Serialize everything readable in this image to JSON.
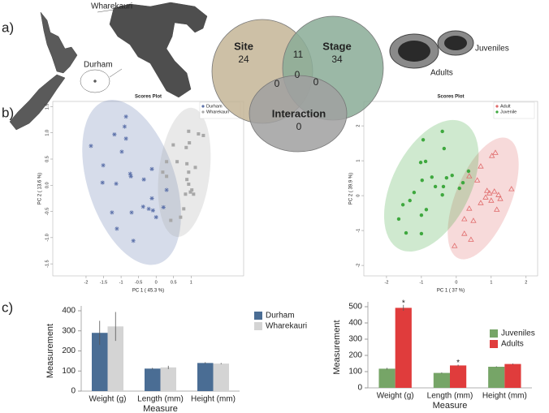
{
  "panel_labels": [
    "a)",
    "b)",
    "c)"
  ],
  "map": {
    "labels": [
      "Wharekauri",
      "Durham"
    ]
  },
  "shells": {
    "labels": [
      "Juveniles",
      "Adults"
    ]
  },
  "chart_data": [
    {
      "type": "venn",
      "sets": [
        {
          "name": "Site",
          "value": 24,
          "color": "#c4b596"
        },
        {
          "name": "Stage",
          "value": 34,
          "color": "#8aab96"
        },
        {
          "name": "Interaction",
          "value": 0,
          "color": "#a0a0a0"
        }
      ],
      "site_stage": 11,
      "site_interaction": 0,
      "stage_interaction": 0,
      "all": 0
    },
    {
      "type": "scatter",
      "title": "Scores Plot",
      "xlabel": "PC 1 ( 45.3 %)",
      "ylabel": "PC 2 ( 13.6 %)",
      "xlim": [
        -2.95,
        2.5
      ],
      "ylim": [
        -1.73,
        1.6
      ],
      "xticks": [
        -2,
        -1.5,
        -1,
        -0.5,
        0,
        0.5,
        1
      ],
      "yticks": [
        {
          "value": -1.5,
          "label": "-1.5"
        },
        {
          "value": -1,
          "label": "-1.0"
        },
        {
          "value": -0.5,
          "label": "-0.5"
        },
        {
          "value": 0,
          "label": "0.0"
        },
        {
          "value": 0.5,
          "label": "0.5"
        },
        {
          "value": 1,
          "label": "1.0"
        },
        {
          "value": 1.5,
          "label": "1.5"
        }
      ],
      "legend": "upper right",
      "series": [
        {
          "name": "Durham",
          "color": "#5d72aa",
          "marker": "star",
          "points": [
            [
              -1.86,
              0.75
            ],
            [
              -1.51,
              0.38
            ],
            [
              -1.19,
              0.97
            ],
            [
              -0.86,
              0.89
            ],
            [
              -0.86,
              1.31
            ],
            [
              -0.9,
              1.12
            ],
            [
              -0.98,
              0.64
            ],
            [
              -1.53,
              0.05
            ],
            [
              -1.14,
              0.03
            ],
            [
              -0.74,
              0.22
            ],
            [
              -0.72,
              0.17
            ],
            [
              -0.35,
              0.11
            ],
            [
              -0.37,
              -0.41
            ],
            [
              -0.21,
              -0.45
            ],
            [
              -0.09,
              -0.48
            ],
            [
              -0.12,
              0.31
            ],
            [
              -0.12,
              -0.25
            ],
            [
              -1.26,
              -0.52
            ],
            [
              -0.7,
              -0.52
            ],
            [
              -1.12,
              -0.83
            ],
            [
              -0.65,
              -1.06
            ],
            [
              0.3,
              -0.09
            ],
            [
              0.21,
              -0.42
            ],
            [
              0.0,
              -0.61
            ]
          ]
        },
        {
          "name": "Wharekauri",
          "color": "#a8a8a8",
          "marker": "square",
          "points": [
            [
              1.21,
              0.98
            ],
            [
              0.93,
              1.03
            ],
            [
              0.95,
              0.81
            ],
            [
              0.86,
              0.72
            ],
            [
              0.49,
              0.77
            ],
            [
              0.3,
              0.45
            ],
            [
              0.6,
              0.45
            ],
            [
              0.88,
              0.41
            ],
            [
              0.93,
              0.25
            ],
            [
              0.88,
              0.11
            ],
            [
              0.93,
              0.02
            ],
            [
              0.98,
              -0.13
            ],
            [
              1.12,
              0.34
            ],
            [
              1.07,
              -0.17
            ],
            [
              0.79,
              -0.45
            ],
            [
              0.7,
              -0.61
            ],
            [
              0.42,
              -0.67
            ],
            [
              0.19,
              0.25
            ],
            [
              0.3,
              0.17
            ],
            [
              1.35,
              0.95
            ],
            [
              1.02,
              -0.09
            ],
            [
              0.84,
              -0.17
            ]
          ]
        }
      ]
    },
    {
      "type": "scatter",
      "title": "Scores Plot",
      "xlabel": "PC 1 ( 37 %)",
      "ylabel": "PC 2 ( 39.9 %)",
      "xlim": [
        -2.65,
        2.33
      ],
      "ylim": [
        -2.3,
        2.7
      ],
      "xticks": [
        -2,
        -1,
        0,
        1,
        2
      ],
      "yticks": [
        -2,
        -1,
        0,
        1,
        2
      ],
      "legend": "upper right",
      "series": [
        {
          "name": "Adult",
          "color": "#e06b6b",
          "marker": "triangle",
          "points": [
            [
              1.12,
              1.23
            ],
            [
              1.02,
              1.14
            ],
            [
              0.7,
              0.84
            ],
            [
              0.37,
              0.56
            ],
            [
              0.6,
              0.44
            ],
            [
              0.88,
              0.14
            ],
            [
              0.95,
              0.07
            ],
            [
              1.09,
              0.12
            ],
            [
              1.21,
              0.02
            ],
            [
              1.26,
              -0.09
            ],
            [
              1.0,
              -0.14
            ],
            [
              0.7,
              -0.21
            ],
            [
              0.37,
              -0.37
            ],
            [
              0.23,
              -0.67
            ],
            [
              0.49,
              -0.72
            ],
            [
              0.42,
              -1.26
            ],
            [
              -0.05,
              -1.44
            ],
            [
              1.58,
              0.19
            ],
            [
              0.84,
              -0.05
            ],
            [
              1.16,
              -0.4
            ],
            [
              0.23,
              -1.09
            ]
          ]
        },
        {
          "name": "Juvenile",
          "color": "#3ea83e",
          "marker": "circle",
          "points": [
            [
              -0.4,
              1.84
            ],
            [
              -0.35,
              1.35
            ],
            [
              -0.95,
              1.6
            ],
            [
              -1.02,
              0.95
            ],
            [
              -0.88,
              0.98
            ],
            [
              -0.7,
              0.53
            ],
            [
              -0.6,
              0.26
            ],
            [
              -0.37,
              0.26
            ],
            [
              -0.28,
              0.51
            ],
            [
              -0.12,
              0.58
            ],
            [
              0.35,
              0.7
            ],
            [
              0.09,
              0.21
            ],
            [
              -0.98,
              0.44
            ],
            [
              -1.21,
              0.09
            ],
            [
              -1.33,
              -0.14
            ],
            [
              -1.53,
              -0.26
            ],
            [
              -1.65,
              -0.67
            ],
            [
              -1.44,
              -1.07
            ],
            [
              -1.0,
              -1.09
            ],
            [
              -0.86,
              -0.4
            ],
            [
              -1.0,
              -0.56
            ],
            [
              -0.4,
              0.02
            ],
            [
              0.19,
              0.37
            ]
          ]
        }
      ]
    },
    {
      "type": "bar",
      "xlabel": "Measure",
      "ylabel": "Measurement",
      "categories": [
        "Weight (g)",
        "Length (mm)",
        "Height (mm)"
      ],
      "ylim": [
        0,
        400
      ],
      "yticks": [
        0,
        100,
        200,
        300,
        400
      ],
      "legend": "upper right",
      "series": [
        {
          "name": "Durham",
          "color": "#4a6d94",
          "values": [
            290,
            112,
            140
          ],
          "errors": [
            60,
            4,
            4
          ]
        },
        {
          "name": "Wharekauri",
          "color": "#d4d4d4",
          "values": [
            322,
            118,
            137
          ],
          "errors": [
            72,
            8,
            3
          ]
        }
      ]
    },
    {
      "type": "bar",
      "xlabel": "Measure",
      "ylabel": "Measurement",
      "categories": [
        "Weight (g)",
        "Length (mm)",
        "Height (mm)"
      ],
      "ylim": [
        0,
        500
      ],
      "yticks": [
        0,
        100,
        200,
        300,
        400,
        500
      ],
      "legend": "upper right",
      "series": [
        {
          "name": "Juveniles",
          "color": "#76a567",
          "values": [
            118,
            92,
            130
          ],
          "errors": [
            5,
            3,
            3
          ]
        },
        {
          "name": "Adults",
          "color": "#e03c3c",
          "values": [
            493,
            138,
            147
          ],
          "errors": [
            18,
            5,
            3
          ],
          "significance": [
            "*",
            "*",
            null
          ]
        }
      ]
    }
  ]
}
